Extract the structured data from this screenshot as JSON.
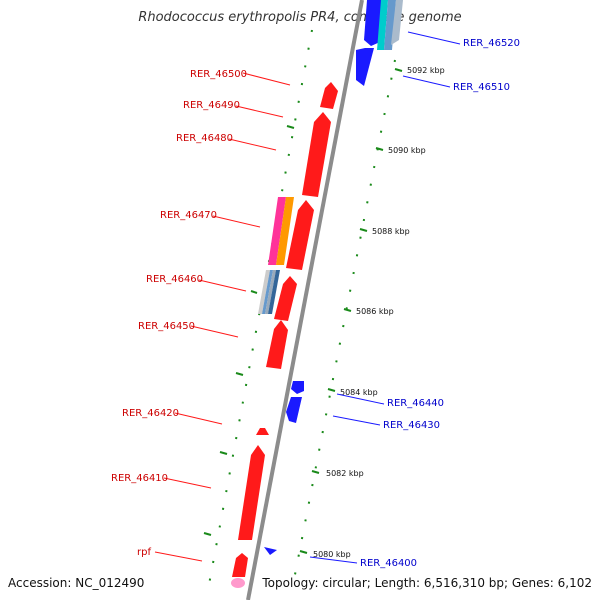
{
  "title": "Rhodococcus erythropolis PR4, complete genome",
  "footer": {
    "accession": "Accession: NC_012490",
    "topology": "Topology: circular; Length: 6,516,310 bp; Genes: 6,102"
  },
  "colors": {
    "forward_gene": "#ff1a1a",
    "reverse_gene": "#1a1aff",
    "tick": "#1a8a1a",
    "backbone": "#999999"
  },
  "kbp_ticks": [
    "5080 kbp",
    "5082 kbp",
    "5084 kbp",
    "5086 kbp",
    "5088 kbp",
    "5090 kbp",
    "5092 kbp"
  ],
  "gene_labels_left": [
    "RER_46500",
    "RER_46490",
    "RER_46480",
    "RER_46470",
    "RER_46460",
    "RER_46450",
    "RER_46420",
    "RER_46410",
    "rpf"
  ],
  "gene_labels_right": [
    "RER_46520",
    "RER_46510",
    "RER_46440",
    "RER_46430",
    "RER_46400"
  ]
}
